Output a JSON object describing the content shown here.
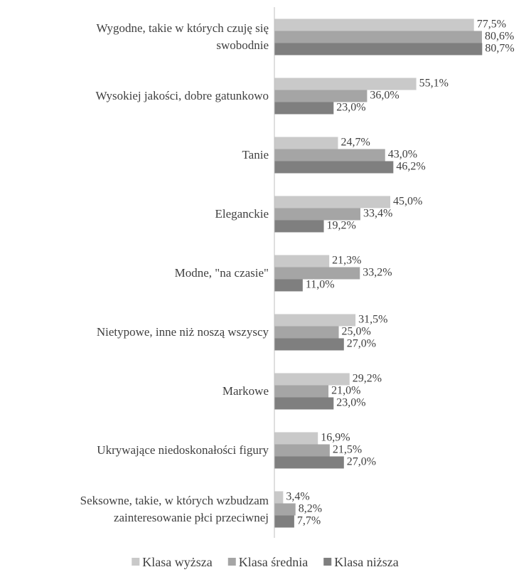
{
  "chart_data": {
    "type": "bar",
    "orientation": "horizontal",
    "categories": [
      "Wygodne, takie w których czuję się\nswobodnie",
      "Wysokiej jakości, dobre gatunkowo",
      "Tanie",
      "Eleganckie",
      "Modne, \"na czasie\"",
      "Nietypowe, inne niż noszą wszyscy",
      "Markowe",
      "Ukrywające niedoskonałości figury",
      "Seksowne, takie, w których wzbudzam\nzainteresowanie płci przeciwnej"
    ],
    "series": [
      {
        "name": "Klasa wyższa",
        "color": "#c9c9c9",
        "values": [
          77.5,
          55.1,
          24.7,
          45.0,
          21.3,
          31.5,
          29.2,
          16.9,
          3.4
        ],
        "value_labels": [
          "77,5%",
          "55,1%",
          "24,7%",
          "45,0%",
          "21,3%",
          "31,5%",
          "29,2%",
          "16,9%",
          "3,4%"
        ]
      },
      {
        "name": "Klasa średnia",
        "color": "#a5a5a5",
        "values": [
          80.6,
          36.0,
          43.0,
          33.4,
          33.2,
          25.0,
          21.0,
          21.5,
          8.2
        ],
        "value_labels": [
          "80,6%",
          "36,0%",
          "43,0%",
          "33,4%",
          "33,2%",
          "25,0%",
          "21,0%",
          "21,5%",
          "8,2%"
        ]
      },
      {
        "name": "Klasa niższa",
        "color": "#7f7f7f",
        "values": [
          80.7,
          23.0,
          46.2,
          19.2,
          11.0,
          27.0,
          23.0,
          27.0,
          7.7
        ],
        "value_labels": [
          "80,7%",
          "23,0%",
          "46,2%",
          "19,2%",
          "11,0%",
          "27,0%",
          "23,0%",
          "27,0%",
          "7,7%"
        ]
      }
    ],
    "xlim": [
      0,
      90
    ],
    "legend": "bottom"
  }
}
